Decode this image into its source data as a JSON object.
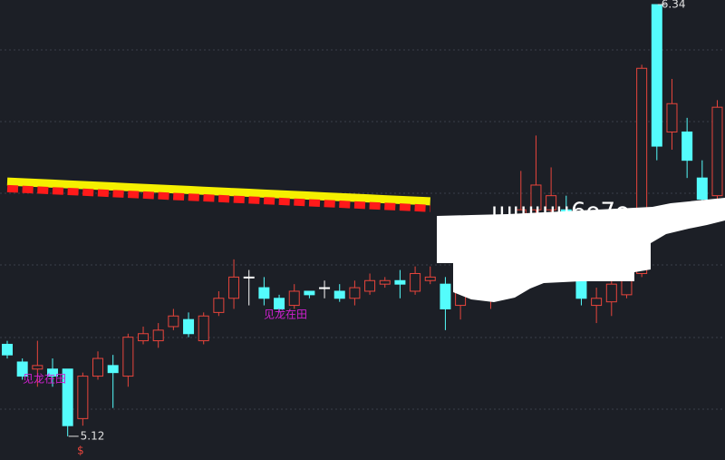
{
  "chart_data": {
    "type": "candlestick",
    "open": [
      5.38,
      5.33,
      5.31,
      5.31,
      5.31,
      5.17,
      5.29,
      5.32,
      5.29,
      5.39,
      5.39,
      5.43,
      5.45,
      5.39,
      5.47,
      5.51,
      5.57,
      5.54,
      5.51,
      5.49,
      5.53,
      5.54,
      5.53,
      5.51,
      5.53,
      5.55,
      5.56,
      5.53,
      5.56,
      5.55,
      5.49,
      5.53,
      5.57,
      5.61,
      5.69,
      5.76,
      5.76,
      5.76,
      5.56,
      5.49,
      5.5,
      5.52,
      5.58,
      6.34,
      5.98,
      5.98,
      5.85,
      5.8
    ],
    "high": [
      5.39,
      5.34,
      5.39,
      5.34,
      5.31,
      5.3,
      5.36,
      5.35,
      5.41,
      5.43,
      5.44,
      5.48,
      5.47,
      5.47,
      5.53,
      5.62,
      5.59,
      5.57,
      5.52,
      5.55,
      5.53,
      5.56,
      5.55,
      5.56,
      5.58,
      5.57,
      5.59,
      5.6,
      5.6,
      5.57,
      5.57,
      5.6,
      5.62,
      5.71,
      5.87,
      5.97,
      5.88,
      5.8,
      5.61,
      5.54,
      5.58,
      5.58,
      6.17,
      6.34,
      6.13,
      6.02,
      5.9,
      6.07
    ],
    "low": [
      5.34,
      5.28,
      5.26,
      5.26,
      5.12,
      5.15,
      5.28,
      5.2,
      5.26,
      5.38,
      5.37,
      5.42,
      5.4,
      5.38,
      5.46,
      5.48,
      5.49,
      5.49,
      5.47,
      5.48,
      5.51,
      5.51,
      5.5,
      5.49,
      5.52,
      5.54,
      5.51,
      5.52,
      5.55,
      5.42,
      5.45,
      5.51,
      5.48,
      5.58,
      5.66,
      5.75,
      5.74,
      5.66,
      5.49,
      5.44,
      5.46,
      5.51,
      5.57,
      5.9,
      5.93,
      5.85,
      5.76,
      5.78
    ],
    "close": [
      5.35,
      5.29,
      5.32,
      5.29,
      5.15,
      5.29,
      5.34,
      5.3,
      5.4,
      5.41,
      5.42,
      5.46,
      5.41,
      5.46,
      5.51,
      5.57,
      5.57,
      5.51,
      5.48,
      5.53,
      5.52,
      5.54,
      5.51,
      5.54,
      5.56,
      5.56,
      5.55,
      5.58,
      5.57,
      5.48,
      5.55,
      5.58,
      5.61,
      5.69,
      5.76,
      5.83,
      5.8,
      5.71,
      5.51,
      5.51,
      5.55,
      5.56,
      6.16,
      5.94,
      6.06,
      5.9,
      5.79,
      6.05
    ],
    "up_color": "#e8453c",
    "down_color": "#54fcfc",
    "lines": [
      {
        "color": "#f5f000",
        "values": [
          5.84,
          5.838,
          5.836,
          5.834,
          5.832,
          5.83,
          5.828,
          5.826,
          5.824,
          5.822,
          5.82,
          5.818,
          5.816,
          5.814,
          5.812,
          5.81,
          5.808,
          5.806,
          5.804,
          5.802,
          5.8,
          5.798,
          5.796,
          5.794,
          5.792,
          5.79,
          5.788,
          5.786,
          5.784
        ]
      },
      {
        "color": "#ff1a1a",
        "values": [
          5.82,
          5.818,
          5.816,
          5.814,
          5.812,
          5.81,
          5.808,
          5.806,
          5.804,
          5.802,
          5.8,
          5.798,
          5.796,
          5.794,
          5.792,
          5.79,
          5.788,
          5.786,
          5.784,
          5.782,
          5.78,
          5.778,
          5.776,
          5.774,
          5.772,
          5.77,
          5.768,
          5.766,
          5.764
        ]
      }
    ],
    "ylim": [
      5.053,
      6.353
    ],
    "high_label": "6.34",
    "low_label": "5.12",
    "annotations": [
      "见龙在田",
      "见龙在田"
    ],
    "marker": "$",
    "overlay_text": "6o7o"
  }
}
